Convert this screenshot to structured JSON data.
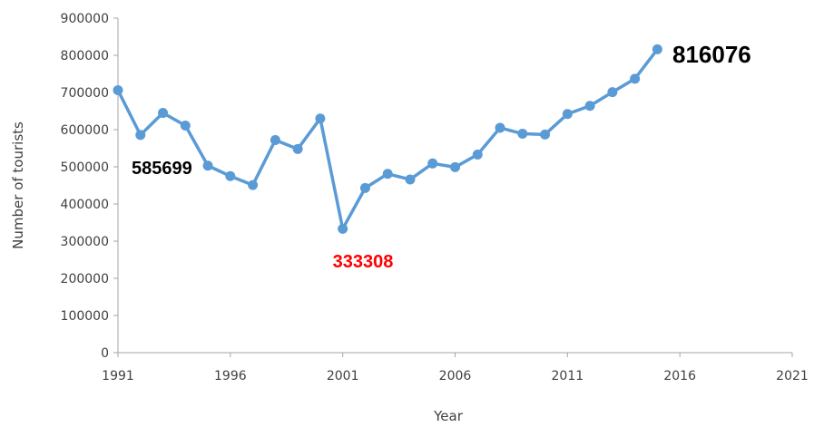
{
  "chart_data": {
    "type": "line",
    "title": "",
    "xlabel": "Year",
    "ylabel": "Number of tourists",
    "xlim": [
      1991,
      2021
    ],
    "ylim": [
      0,
      900000
    ],
    "x_ticks": [
      "1991",
      "1996",
      "2001",
      "2006",
      "2011",
      "2016",
      "2021"
    ],
    "y_ticks": [
      "0",
      "100000",
      "200000",
      "300000",
      "400000",
      "500000",
      "600000",
      "700000",
      "800000",
      "900000"
    ],
    "grid": false,
    "legend": "none",
    "series": [
      {
        "color": "#5b9bd5",
        "x": [
          1991,
          1992,
          1993,
          1994,
          1995,
          1996,
          1997,
          1998,
          1999,
          2000,
          2001,
          2002,
          2003,
          2004,
          2005,
          2006,
          2007,
          2008,
          2009,
          2010,
          2011,
          2012,
          2013,
          2014,
          2015
        ],
        "values": [
          706000,
          585699,
          645000,
          611000,
          503000,
          475000,
          451000,
          572000,
          548000,
          630000,
          333308,
          443000,
          481000,
          466000,
          509000,
          499000,
          533000,
          605000,
          589000,
          587000,
          642000,
          664000,
          701000,
          737000,
          816076
        ]
      }
    ],
    "annotations": [
      {
        "text": "585699",
        "x": 1992,
        "y": 585699,
        "color": "#000000"
      },
      {
        "text": "333308",
        "x": 2001,
        "y": 333308,
        "color": "#ff0000"
      },
      {
        "text": "816076",
        "x": 2015,
        "y": 816076,
        "color": "#000000"
      }
    ]
  }
}
